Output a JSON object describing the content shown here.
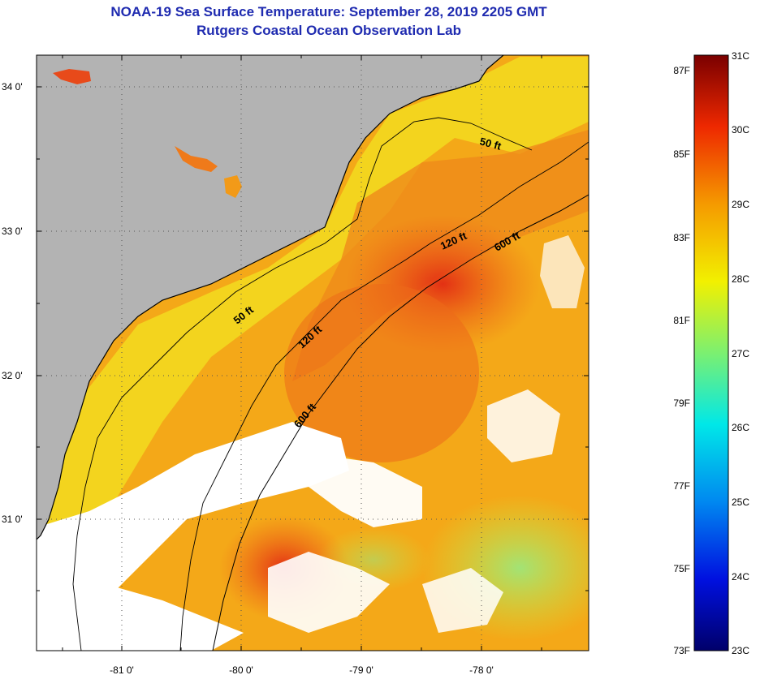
{
  "title": {
    "line1": "NOAA-19 Sea Surface Temperature:  September 28, 2019 2205 GMT",
    "line2": "Rutgers Coastal Ocean Observation Lab"
  },
  "map": {
    "lon_labels": [
      "-81 0'",
      "-80 0'",
      "-79 0'",
      "-78 0'"
    ],
    "lat_labels": [
      "34 0'",
      "33 0'",
      "32 0'",
      "31 0'"
    ],
    "depth_labels": [
      {
        "text": "50 ft"
      },
      {
        "text": "50 ft"
      },
      {
        "text": "120 ft"
      },
      {
        "text": "120 ft"
      },
      {
        "text": "600 ft"
      },
      {
        "text": "600 ft"
      }
    ],
    "colors": {
      "land": "#b3b3b3",
      "cloud": "#ffffff",
      "warm": "#f4a21a",
      "hot": "#e8351a",
      "cool": "#a9e64b"
    }
  },
  "colorbar": {
    "fahrenheit": [
      "87F",
      "85F",
      "83F",
      "81F",
      "79F",
      "77F",
      "75F",
      "73F"
    ],
    "celsius": [
      "31C",
      "30C",
      "29C",
      "28C",
      "27C",
      "26C",
      "25C",
      "24C",
      "23C"
    ]
  }
}
